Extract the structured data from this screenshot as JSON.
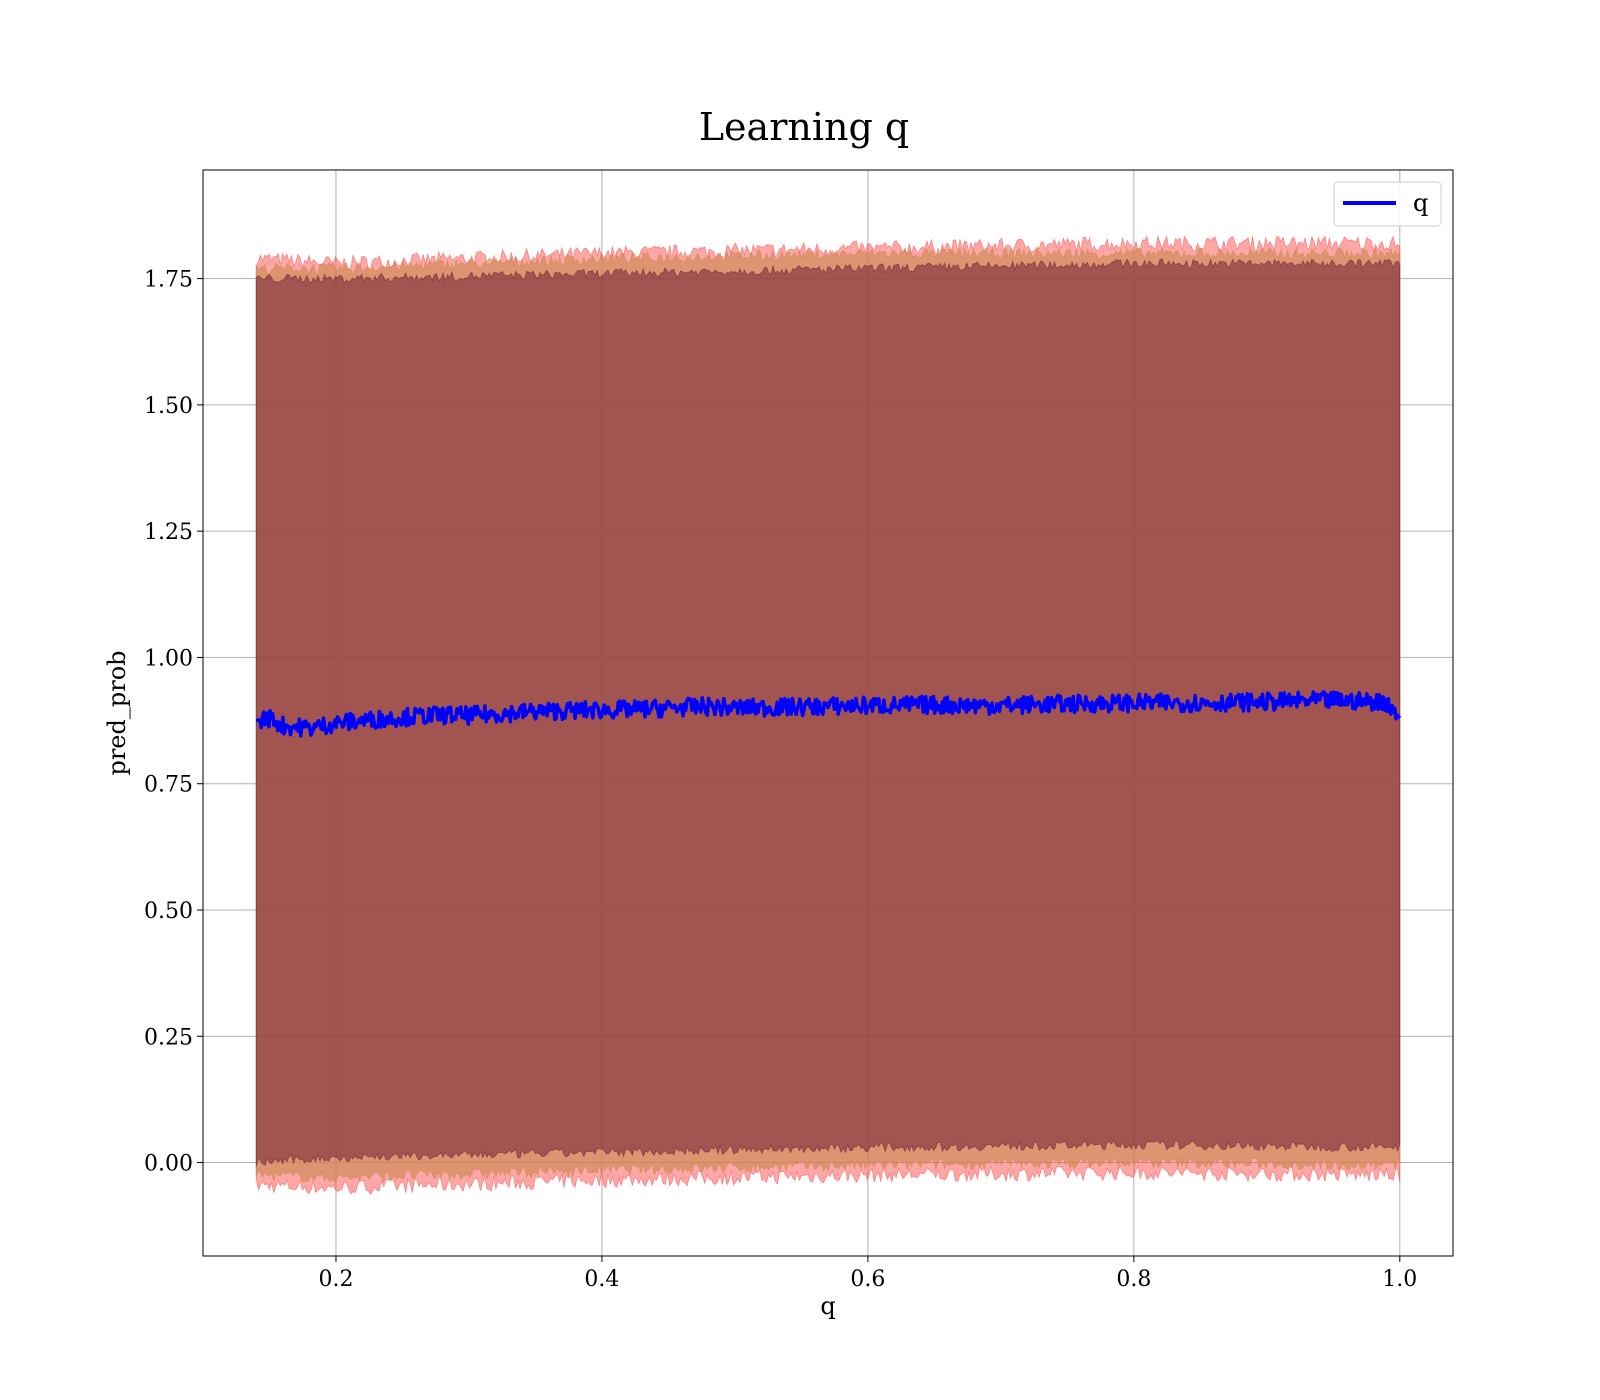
{
  "chart_data": {
    "type": "line",
    "title": "Learning q",
    "xlabel": "q",
    "ylabel": "pred_prob",
    "xlim": [
      0.1,
      1.04
    ],
    "ylim": [
      -0.185,
      1.965
    ],
    "xticks": [
      "0.2",
      "0.4",
      "0.6",
      "0.8",
      "1.0"
    ],
    "yticks": [
      "0.00",
      "0.25",
      "0.50",
      "0.75",
      "1.00",
      "1.25",
      "1.50",
      "1.75"
    ],
    "grid": true,
    "legend_position": "top-right",
    "colors": {
      "line": "#0000ff",
      "band_outer": "#ff4d4d",
      "band_middle": "#c9894f",
      "band_inner": "#6e1f35",
      "grid": "#b0b0b0"
    },
    "series": [
      {
        "name": "q",
        "x": [
          0.14,
          0.15,
          0.16,
          0.18,
          0.2,
          0.22,
          0.25,
          0.28,
          0.3,
          0.35,
          0.38,
          0.4,
          0.42,
          0.45,
          0.48,
          0.5,
          0.55,
          0.6,
          0.65,
          0.7,
          0.75,
          0.8,
          0.85,
          0.9,
          0.95,
          0.99,
          1.0
        ],
        "y": [
          0.875,
          0.88,
          0.865,
          0.86,
          0.87,
          0.875,
          0.882,
          0.886,
          0.885,
          0.893,
          0.895,
          0.896,
          0.897,
          0.9,
          0.903,
          0.9,
          0.902,
          0.905,
          0.906,
          0.905,
          0.908,
          0.91,
          0.91,
          0.912,
          0.915,
          0.912,
          0.88
        ]
      }
    ],
    "bands": [
      {
        "label": "outer",
        "x": [
          0.14,
          0.2,
          0.4,
          0.6,
          0.8,
          1.0
        ],
        "upper": [
          1.79,
          1.78,
          1.8,
          1.81,
          1.82,
          1.82
        ],
        "lower": [
          -0.045,
          -0.05,
          -0.035,
          -0.025,
          -0.02,
          -0.025
        ]
      },
      {
        "label": "middle",
        "x": [
          0.14,
          0.2,
          0.4,
          0.6,
          0.8,
          1.0
        ],
        "upper": [
          1.77,
          1.77,
          1.79,
          1.8,
          1.8,
          1.8
        ],
        "lower": [
          -0.025,
          -0.03,
          -0.015,
          -0.005,
          0.0,
          -0.005
        ]
      },
      {
        "label": "inner",
        "x": [
          0.14,
          0.2,
          0.4,
          0.6,
          0.8,
          1.0
        ],
        "upper": [
          1.75,
          1.75,
          1.76,
          1.77,
          1.78,
          1.78
        ],
        "lower": [
          0.0,
          0.01,
          0.02,
          0.03,
          0.035,
          0.03
        ]
      }
    ]
  }
}
